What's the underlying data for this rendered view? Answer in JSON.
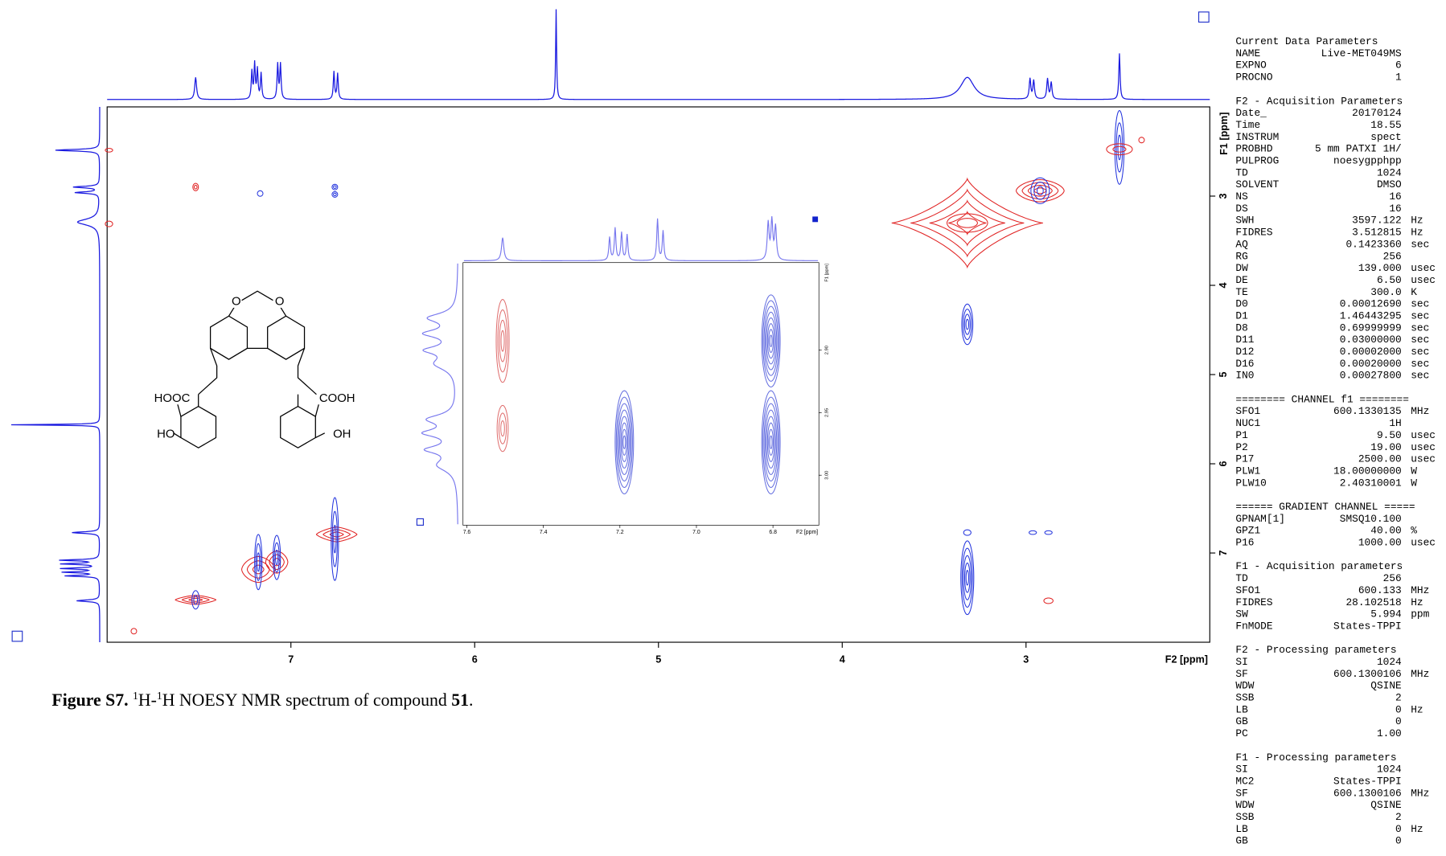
{
  "spectrum": {
    "x_label": "F2 [ppm]",
    "y_label": "F1 [ppm]",
    "xlim": [
      8,
      2
    ],
    "ylim": [
      2,
      8
    ],
    "xticks": [
      7,
      6,
      5,
      4,
      3
    ],
    "yticks": [
      3,
      4,
      5,
      6,
      7
    ]
  },
  "inset": {
    "x_label": "F2 [ppm]",
    "y_label": "F1 [ppm]",
    "xlim": [
      7.61,
      6.68
    ],
    "ylim": [
      2.83,
      3.04
    ],
    "xticks": [
      7.6,
      7.4,
      7.2,
      {
        "value": 7,
        "label": "7.0"
      },
      6.8
    ],
    "yticks": [
      {
        "value": 2.9,
        "label": "2.90"
      },
      {
        "value": 2.95,
        "label": "2.95"
      },
      {
        "value": 3,
        "label": "3.00"
      }
    ]
  },
  "molecule": {
    "labels": [
      "O",
      "O",
      "HOOC",
      "COOH",
      "HO",
      "OH"
    ]
  },
  "caption": {
    "label": "Figure S7.",
    "sup1": "1",
    "text1": "H-",
    "sup2": "1",
    "text2": "H NOESY NMR spectrum of compound ",
    "compound": "51",
    "end": "."
  },
  "parameters": [
    {
      "title": "Current Data Parameters",
      "rows": [
        [
          "NAME",
          "Live-MET049MS"
        ],
        [
          "EXPNO",
          "6"
        ],
        [
          "PROCNO",
          "1"
        ]
      ]
    },
    {
      "title": "F2 - Acquisition Parameters",
      "rows": [
        [
          "Date_",
          "20170124"
        ],
        [
          "Time",
          "18.55"
        ],
        [
          "INSTRUM",
          "spect"
        ],
        [
          "PROBHD",
          "5 mm PATXI 1H/"
        ],
        [
          "PULPROG",
          "noesygpphpp"
        ],
        [
          "TD",
          "1024"
        ],
        [
          "SOLVENT",
          "DMSO"
        ],
        [
          "NS",
          "16"
        ],
        [
          "DS",
          "16"
        ],
        [
          "SWH",
          "3597.122",
          "Hz"
        ],
        [
          "FIDRES",
          "3.512815",
          "Hz"
        ],
        [
          "AQ",
          "0.1423360",
          "sec"
        ],
        [
          "RG",
          "256"
        ],
        [
          "DW",
          "139.000",
          "usec"
        ],
        [
          "DE",
          "6.50",
          "usec"
        ],
        [
          "TE",
          "300.0",
          "K"
        ],
        [
          "D0",
          "0.00012690",
          "sec"
        ],
        [
          "D1",
          "1.46443295",
          "sec"
        ],
        [
          "D8",
          "0.69999999",
          "sec"
        ],
        [
          "D11",
          "0.03000000",
          "sec"
        ],
        [
          "D12",
          "0.00002000",
          "sec"
        ],
        [
          "D16",
          "0.00020000",
          "sec"
        ],
        [
          "IN0",
          "0.00027800",
          "sec"
        ]
      ]
    },
    {
      "title": "======== CHANNEL f1 ========",
      "rows": [
        [
          "SFO1",
          "600.1330135",
          "MHz"
        ],
        [
          "NUC1",
          "1H"
        ],
        [
          "P1",
          "9.50",
          "usec"
        ],
        [
          "P2",
          "19.00",
          "usec"
        ],
        [
          "P17",
          "2500.00",
          "usec"
        ],
        [
          "PLW1",
          "18.00000000",
          "W"
        ],
        [
          "PLW10",
          "2.40310001",
          "W"
        ]
      ]
    },
    {
      "title": "====== GRADIENT CHANNEL =====",
      "rows": [
        [
          "GPNAM[1]",
          "SMSQ10.100"
        ],
        [
          "GPZ1",
          "40.00",
          "%"
        ],
        [
          "P16",
          "1000.00",
          "usec"
        ]
      ]
    },
    {
      "title": "F1 - Acquisition parameters",
      "rows": [
        [
          "TD",
          "256"
        ],
        [
          "SFO1",
          "600.133",
          "MHz"
        ],
        [
          "FIDRES",
          "28.102518",
          "Hz"
        ],
        [
          "SW",
          "5.994",
          "ppm"
        ],
        [
          "FnMODE",
          "States-TPPI"
        ]
      ]
    },
    {
      "title": "F2 - Processing parameters",
      "rows": [
        [
          "SI",
          "1024"
        ],
        [
          "SF",
          "600.1300106",
          "MHz"
        ],
        [
          "WDW",
          "QSINE"
        ],
        [
          "SSB",
          "2"
        ],
        [
          "LB",
          "0",
          "Hz"
        ],
        [
          "GB",
          "0"
        ],
        [
          "PC",
          "1.00"
        ]
      ]
    },
    {
      "title": "F1 - Processing parameters",
      "rows": [
        [
          "SI",
          "1024"
        ],
        [
          "MC2",
          "States-TPPI"
        ],
        [
          "SF",
          "600.1300106",
          "MHz"
        ],
        [
          "WDW",
          "QSINE"
        ],
        [
          "SSB",
          "2"
        ],
        [
          "LB",
          "0",
          "Hz"
        ],
        [
          "GB",
          "0"
        ]
      ]
    }
  ]
}
